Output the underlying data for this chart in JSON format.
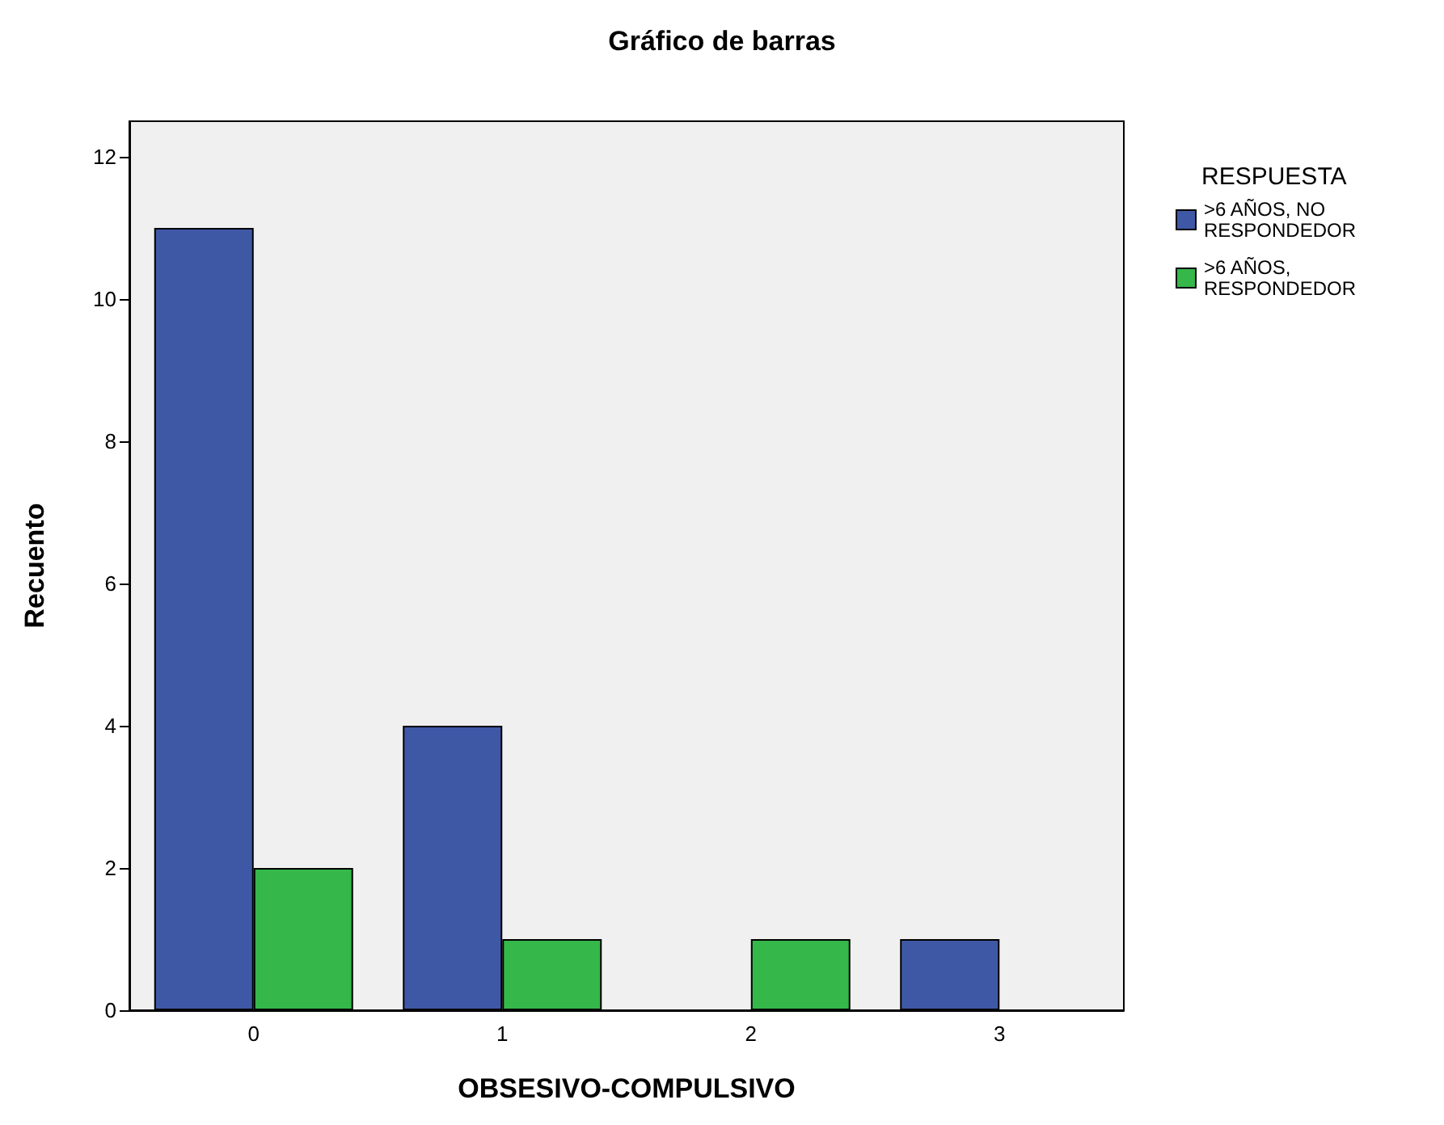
{
  "chart_data": {
    "type": "bar",
    "title": "Gráfico de barras",
    "xlabel": "OBSESIVO-COMPULSIVO",
    "ylabel": "Recuento",
    "legend_title": "RESPUESTA",
    "categories": [
      "0",
      "1",
      "2",
      "3"
    ],
    "series": [
      {
        "name": ">6 AÑOS, NO RESPONDEDOR",
        "color": "#3f58a6",
        "values": [
          11,
          4,
          null,
          1
        ]
      },
      {
        "name": ">6 AÑOS, RESPONDEDOR",
        "color": "#35b74a",
        "values": [
          2,
          1,
          1,
          null
        ]
      }
    ],
    "ylim": [
      0,
      12.5
    ],
    "yticks": [
      0,
      2,
      4,
      6,
      8,
      10,
      12
    ],
    "grid": false,
    "legend": "top right"
  }
}
